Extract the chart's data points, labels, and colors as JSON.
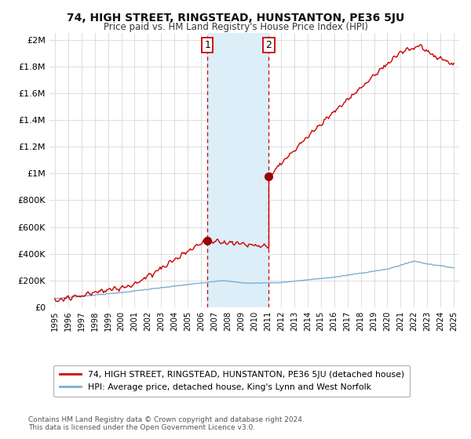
{
  "title": "74, HIGH STREET, RINGSTEAD, HUNSTANTON, PE36 5JU",
  "subtitle": "Price paid vs. HM Land Registry's House Price Index (HPI)",
  "title_fontsize": 10,
  "subtitle_fontsize": 8.5,
  "ylabel_ticks": [
    "£0",
    "£200K",
    "£400K",
    "£600K",
    "£800K",
    "£1M",
    "£1.2M",
    "£1.4M",
    "£1.6M",
    "£1.8M",
    "£2M"
  ],
  "ytick_values": [
    0,
    200000,
    400000,
    600000,
    800000,
    1000000,
    1200000,
    1400000,
    1600000,
    1800000,
    2000000
  ],
  "ylim": [
    0,
    2050000
  ],
  "xlim_start": 1994.6,
  "xlim_end": 2025.4,
  "sale1_date": 2006.47,
  "sale1_price": 500000,
  "sale2_date": 2011.09,
  "sale2_price": 980000,
  "line_color_red": "#cc0000",
  "line_color_blue": "#7aafd4",
  "shade_color": "#dceef8",
  "marker_color": "#990000",
  "legend_line1": "74, HIGH STREET, RINGSTEAD, HUNSTANTON, PE36 5JU (detached house)",
  "legend_line2": "HPI: Average price, detached house, King's Lynn and West Norfolk",
  "footnote": "Contains HM Land Registry data © Crown copyright and database right 2024.\nThis data is licensed under the Open Government Licence v3.0.",
  "background_color": "#ffffff",
  "grid_color": "#d0d0d0"
}
